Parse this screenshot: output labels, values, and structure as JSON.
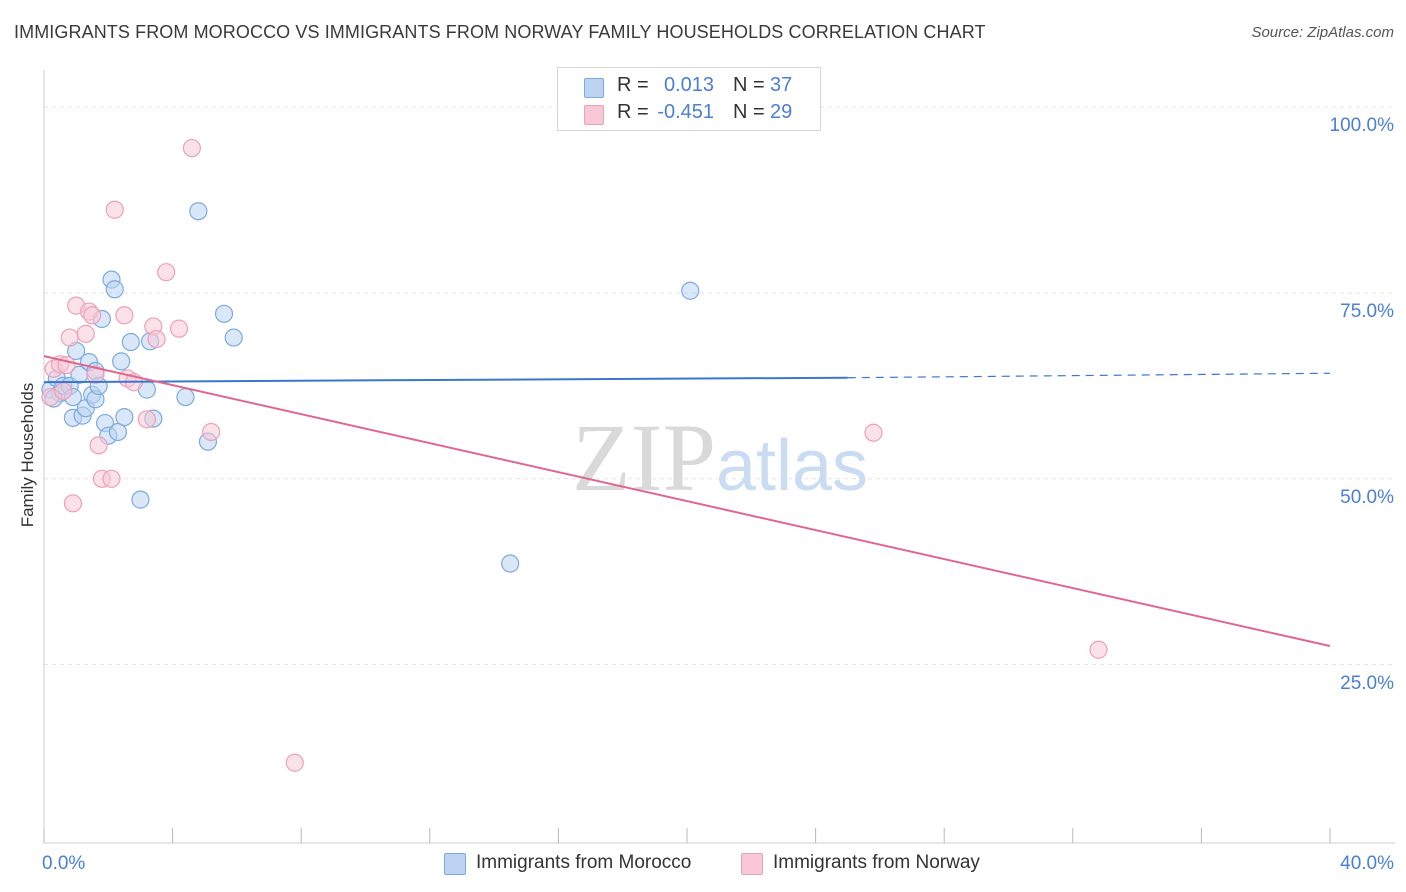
{
  "chart_data": {
    "type": "scatter",
    "title": "IMMIGRANTS FROM MOROCCO VS IMMIGRANTS FROM NORWAY FAMILY HOUSEHOLDS CORRELATION CHART",
    "source": "Source: ZipAtlas.com",
    "ylabel": "Family Households",
    "xlim": [
      0,
      40
    ],
    "ylim": [
      1,
      105
    ],
    "y_ticks": [
      {
        "value": 100,
        "label": "100.0%"
      },
      {
        "value": 75,
        "label": "75.0%"
      },
      {
        "value": 50,
        "label": "50.0%"
      },
      {
        "value": 25,
        "label": "25.0%"
      }
    ],
    "x_ticks": [
      {
        "value": 0,
        "label": "0.0%"
      },
      {
        "value": 40,
        "label": "40.0%"
      }
    ],
    "x_minor_ticks": [
      0,
      4,
      8,
      12,
      16,
      20,
      24,
      28,
      32,
      36,
      40
    ],
    "grid": true,
    "watermark": "ZIPatlas",
    "series": [
      {
        "name": "Immigrants from Morocco",
        "color": "#7aabdf",
        "fill": "#bcd4f2",
        "line_color": "#3a78d0",
        "R": "0.013",
        "N": "37",
        "trend": {
          "x0": 0,
          "y0": 63.0,
          "x1": 25.0,
          "y1": 63.6,
          "dashed_to_x": 40,
          "dashed_to_y": 64.2
        },
        "points": [
          [
            0.2,
            62.0
          ],
          [
            0.4,
            63.5
          ],
          [
            0.5,
            61.5
          ],
          [
            0.6,
            62.5
          ],
          [
            0.8,
            62.5
          ],
          [
            0.9,
            58.2
          ],
          [
            0.9,
            61.0
          ],
          [
            1.0,
            67.2
          ],
          [
            1.1,
            64.0
          ],
          [
            1.2,
            58.5
          ],
          [
            1.3,
            59.5
          ],
          [
            1.4,
            65.7
          ],
          [
            1.5,
            61.3
          ],
          [
            1.6,
            64.5
          ],
          [
            1.6,
            60.7
          ],
          [
            1.7,
            62.5
          ],
          [
            1.8,
            71.5
          ],
          [
            1.9,
            57.5
          ],
          [
            2.0,
            55.8
          ],
          [
            2.1,
            76.8
          ],
          [
            2.2,
            75.5
          ],
          [
            2.3,
            56.3
          ],
          [
            2.4,
            65.8
          ],
          [
            2.5,
            58.3
          ],
          [
            2.7,
            68.4
          ],
          [
            3.0,
            47.2
          ],
          [
            3.2,
            62.0
          ],
          [
            3.3,
            68.5
          ],
          [
            3.4,
            58.1
          ],
          [
            4.4,
            61.0
          ],
          [
            4.8,
            86.0
          ],
          [
            5.1,
            55.0
          ],
          [
            5.6,
            72.2
          ],
          [
            5.9,
            69.0
          ],
          [
            14.5,
            38.6
          ],
          [
            20.1,
            75.3
          ],
          [
            0.3,
            60.8
          ]
        ]
      },
      {
        "name": "Immigrants from Norway",
        "color": "#eea0b8",
        "fill": "#f8c8d6",
        "line_color": "#e0668e",
        "R": "-0.451",
        "N": "29",
        "trend": {
          "x0": 0,
          "y0": 66.5,
          "x1": 40,
          "y1": 27.5
        },
        "points": [
          [
            0.2,
            61.0
          ],
          [
            0.3,
            64.8
          ],
          [
            0.5,
            65.4
          ],
          [
            0.7,
            65.3
          ],
          [
            0.8,
            69.0
          ],
          [
            0.9,
            46.7
          ],
          [
            1.0,
            73.3
          ],
          [
            1.3,
            69.5
          ],
          [
            1.4,
            72.5
          ],
          [
            1.5,
            72.0
          ],
          [
            1.7,
            54.5
          ],
          [
            1.8,
            50.0
          ],
          [
            2.1,
            50.0
          ],
          [
            2.2,
            86.2
          ],
          [
            2.5,
            72.0
          ],
          [
            2.6,
            63.5
          ],
          [
            2.8,
            63.0
          ],
          [
            3.2,
            58.0
          ],
          [
            3.4,
            70.5
          ],
          [
            3.5,
            68.8
          ],
          [
            3.8,
            77.8
          ],
          [
            4.2,
            70.2
          ],
          [
            4.6,
            94.5
          ],
          [
            5.2,
            56.3
          ],
          [
            7.8,
            11.8
          ],
          [
            25.8,
            56.2
          ],
          [
            32.8,
            27.0
          ],
          [
            0.6,
            61.8
          ],
          [
            1.6,
            64.0
          ]
        ]
      }
    ]
  },
  "legend_top": {
    "rows": [
      {
        "r_label": "R =",
        "r_value": "0.013",
        "n_label": "N =",
        "n_value": "37"
      },
      {
        "r_label": "R =",
        "r_value": "-0.451",
        "n_label": "N =",
        "n_value": "29"
      }
    ]
  },
  "legend_bottom": {
    "items": [
      "Immigrants from Morocco",
      "Immigrants from Norway"
    ]
  }
}
